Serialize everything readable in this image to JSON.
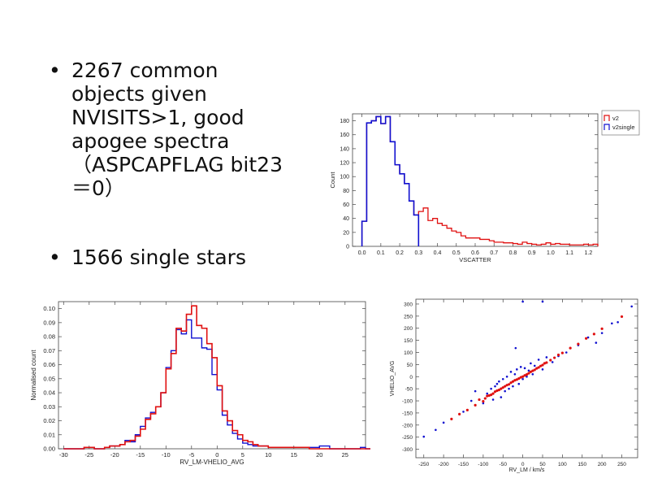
{
  "slide": {
    "bullets": [
      {
        "text": "2267 common objects given NVISITS>1, good apogee spectra （ASPCAPFLAG bit23＝0）"
      },
      {
        "text": "1566 single stars"
      }
    ]
  },
  "chart_data": [
    {
      "type": "histogram",
      "xlabel": "VSCATTER",
      "ylabel": "Count",
      "xlim": [
        -0.05,
        1.25
      ],
      "ylim": [
        0,
        190
      ],
      "xticks": [
        "0.0",
        "0.1",
        "0.2",
        "0.3",
        "0.4",
        "0.5",
        "0.6",
        "0.7",
        "0.8",
        "0.9",
        "1.0",
        "1.1",
        "1.2"
      ],
      "yticks": [
        "0",
        "20",
        "40",
        "60",
        "80",
        "100",
        "120",
        "140",
        "160",
        "180"
      ],
      "legend": {
        "placement": "outside-right",
        "entries": [
          "v2",
          "v2single"
        ]
      },
      "bin_start": 0.0,
      "bin_width": 0.025,
      "series": [
        {
          "name": "v2",
          "color": "#e01010",
          "values": [
            36,
            177,
            180,
            186,
            176,
            186,
            150,
            117,
            104,
            90,
            65,
            45,
            50,
            55,
            37,
            40,
            33,
            30,
            26,
            22,
            20,
            15,
            12,
            12,
            12,
            10,
            10,
            8,
            6,
            6,
            5,
            5,
            4,
            3,
            6,
            4,
            3,
            2,
            3,
            5,
            3,
            4,
            3,
            3,
            2,
            2,
            2,
            3,
            2,
            3
          ]
        },
        {
          "name": "v2single",
          "color": "#1010d0",
          "values": [
            36,
            177,
            180,
            186,
            176,
            186,
            150,
            117,
            104,
            90,
            65,
            45
          ]
        }
      ]
    },
    {
      "type": "histogram",
      "xlabel": "RV_LM-VHELIO_AVG",
      "ylabel": "Normalised count",
      "xlim": [
        -31,
        29
      ],
      "ylim": [
        0,
        0.105
      ],
      "xticks": [
        "-30",
        "-25",
        "-20",
        "-15",
        "-10",
        "-5",
        "0",
        "5",
        "10",
        "15",
        "20",
        "25"
      ],
      "yticks": [
        "0.00",
        "0.01",
        "0.02",
        "0.03",
        "0.04",
        "0.05",
        "0.06",
        "0.07",
        "0.08",
        "0.09",
        "0.10"
      ],
      "bin_start": -30,
      "bin_width": 1,
      "series": [
        {
          "name": "",
          "color": "#1010d0",
          "values": [
            0,
            0,
            0,
            0,
            0.001,
            0.001,
            0,
            0,
            0.001,
            0.002,
            0.002,
            0.003,
            0.006,
            0.005,
            0.01,
            0.016,
            0.022,
            0.026,
            0.03,
            0.04,
            0.058,
            0.07,
            0.085,
            0.082,
            0.092,
            0.079,
            0.079,
            0.072,
            0.071,
            0.053,
            0.042,
            0.024,
            0.017,
            0.011,
            0.007,
            0.004,
            0.003,
            0.002,
            0.002,
            0.002,
            0.001,
            0.001,
            0.001,
            0.001,
            0.001,
            0.001,
            0.001,
            0.001,
            0.001,
            0.001,
            0.002,
            0.002,
            0,
            0,
            0,
            0,
            0,
            0,
            0.001,
            0
          ]
        },
        {
          "name": "",
          "color": "#e01010",
          "values": [
            0,
            0,
            0,
            0,
            0.001,
            0.001,
            0,
            0,
            0.001,
            0.002,
            0.002,
            0.003,
            0.005,
            0.006,
            0.009,
            0.014,
            0.021,
            0.025,
            0.03,
            0.04,
            0.057,
            0.068,
            0.086,
            0.084,
            0.096,
            0.102,
            0.088,
            0.086,
            0.075,
            0.065,
            0.045,
            0.027,
            0.02,
            0.013,
            0.01,
            0.006,
            0.005,
            0.003,
            0.002,
            0.002,
            0.001,
            0.001,
            0.001,
            0.001,
            0.001,
            0.001,
            0.001,
            0.001,
            0,
            0,
            0,
            0,
            0,
            0,
            0,
            0,
            0,
            0,
            0,
            0
          ]
        }
      ]
    },
    {
      "type": "scatter",
      "xlabel": "RV_LM / km/s",
      "ylabel": "VHELIO_AVG",
      "xlim": [
        -270,
        290
      ],
      "ylim": [
        -335,
        320
      ],
      "xticks": [
        "-250",
        "-200",
        "-150",
        "-100",
        "-50",
        "0",
        "50",
        "100",
        "150",
        "200",
        "250"
      ],
      "yticks": [
        "300",
        "250",
        "200",
        "150",
        "100",
        "50",
        "0",
        "-50",
        "-100",
        "-150",
        "-200",
        "-250",
        "-300"
      ],
      "series": [
        {
          "name": "",
          "color": "#1010d0",
          "points": [
            [
              0,
              310
            ],
            [
              50,
              310
            ],
            [
              -18,
              118
            ],
            [
              -250,
              -248
            ],
            [
              -220,
              -220
            ],
            [
              -200,
              -190
            ],
            [
              -160,
              -155
            ],
            [
              -150,
              -145
            ],
            [
              -130,
              -100
            ],
            [
              -120,
              -60
            ],
            [
              -100,
              -110
            ],
            [
              -90,
              -70
            ],
            [
              -80,
              -50
            ],
            [
              -75,
              -95
            ],
            [
              -70,
              -40
            ],
            [
              -65,
              -30
            ],
            [
              -60,
              -20
            ],
            [
              -55,
              -85
            ],
            [
              -50,
              -10
            ],
            [
              -45,
              -60
            ],
            [
              -40,
              0
            ],
            [
              -35,
              -50
            ],
            [
              -30,
              20
            ],
            [
              -25,
              -40
            ],
            [
              -20,
              10
            ],
            [
              -15,
              30
            ],
            [
              -10,
              -30
            ],
            [
              -5,
              40
            ],
            [
              0,
              -10
            ],
            [
              5,
              35
            ],
            [
              10,
              0
            ],
            [
              15,
              25
            ],
            [
              20,
              55
            ],
            [
              25,
              10
            ],
            [
              30,
              45
            ],
            [
              40,
              70
            ],
            [
              50,
              30
            ],
            [
              60,
              80
            ],
            [
              75,
              60
            ],
            [
              90,
              85
            ],
            [
              110,
              100
            ],
            [
              140,
              130
            ],
            [
              165,
              162
            ],
            [
              185,
              140
            ],
            [
              200,
              180
            ],
            [
              225,
              220
            ],
            [
              240,
              225
            ],
            [
              275,
              290
            ]
          ]
        },
        {
          "name": "",
          "color": "#e01010",
          "points": [
            [
              -180,
              -175
            ],
            [
              -160,
              -155
            ],
            [
              -140,
              -138
            ],
            [
              -120,
              -118
            ],
            [
              -110,
              -95
            ],
            [
              -100,
              -102
            ],
            [
              -95,
              -90
            ],
            [
              -90,
              -80
            ],
            [
              -85,
              -78
            ],
            [
              -80,
              -75
            ],
            [
              -75,
              -70
            ],
            [
              -70,
              -62
            ],
            [
              -65,
              -58
            ],
            [
              -60,
              -55
            ],
            [
              -55,
              -50
            ],
            [
              -50,
              -45
            ],
            [
              -45,
              -40
            ],
            [
              -40,
              -35
            ],
            [
              -35,
              -32
            ],
            [
              -30,
              -25
            ],
            [
              -25,
              -20
            ],
            [
              -20,
              -15
            ],
            [
              -15,
              -12
            ],
            [
              -10,
              -8
            ],
            [
              -5,
              -3
            ],
            [
              0,
              0
            ],
            [
              5,
              5
            ],
            [
              10,
              9
            ],
            [
              15,
              14
            ],
            [
              20,
              20
            ],
            [
              25,
              24
            ],
            [
              30,
              28
            ],
            [
              35,
              34
            ],
            [
              40,
              38
            ],
            [
              45,
              44
            ],
            [
              50,
              48
            ],
            [
              55,
              55
            ],
            [
              60,
              58
            ],
            [
              70,
              68
            ],
            [
              80,
              78
            ],
            [
              90,
              90
            ],
            [
              100,
              98
            ],
            [
              120,
              118
            ],
            [
              140,
              135
            ],
            [
              160,
              158
            ],
            [
              180,
              176
            ],
            [
              200,
              198
            ],
            [
              250,
              248
            ]
          ]
        }
      ]
    }
  ]
}
